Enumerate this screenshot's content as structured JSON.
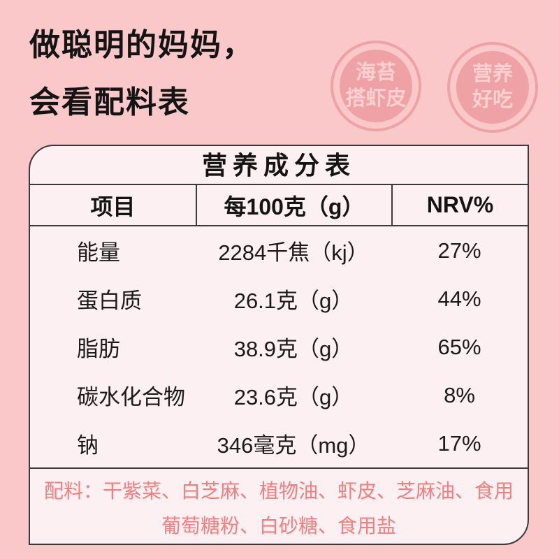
{
  "poster": {
    "heading": {
      "line1": "做聪明的妈妈，",
      "line2": "会看配料表"
    },
    "badges": [
      {
        "line1": "海苔",
        "line2": "搭虾皮"
      },
      {
        "line1": "营养",
        "line2": "好吃"
      }
    ],
    "nutrition_table": {
      "title": "营养成分表",
      "columns": [
        "项目",
        "每100克（g）",
        "NRV%"
      ],
      "rows": [
        {
          "item": "能量",
          "amount": "2284千焦（kj）",
          "nrv": "27%"
        },
        {
          "item": "蛋白质",
          "amount": "26.1克（g）",
          "nrv": "44%"
        },
        {
          "item": "脂肪",
          "amount": "38.9克（g）",
          "nrv": "65%"
        },
        {
          "item": "碳水化合物",
          "amount": "23.6克（g）",
          "nrv": "8%"
        },
        {
          "item": "钠",
          "amount": "346毫克（mg）",
          "nrv": "17%"
        }
      ],
      "ingredients": "配料：干紫菜、白芝麻、植物油、虾皮、芝麻油、食用葡萄糖粉、白砂糖、食用盐"
    },
    "colors": {
      "background": "#fac8c9",
      "card_background": "#fdf0f2",
      "border": "#3a3a3a",
      "heading_text": "#141414",
      "badge_fill": "#efa2a5",
      "badge_text": "#fbd0d1",
      "ingredients_text": "#f57f7f"
    }
  }
}
